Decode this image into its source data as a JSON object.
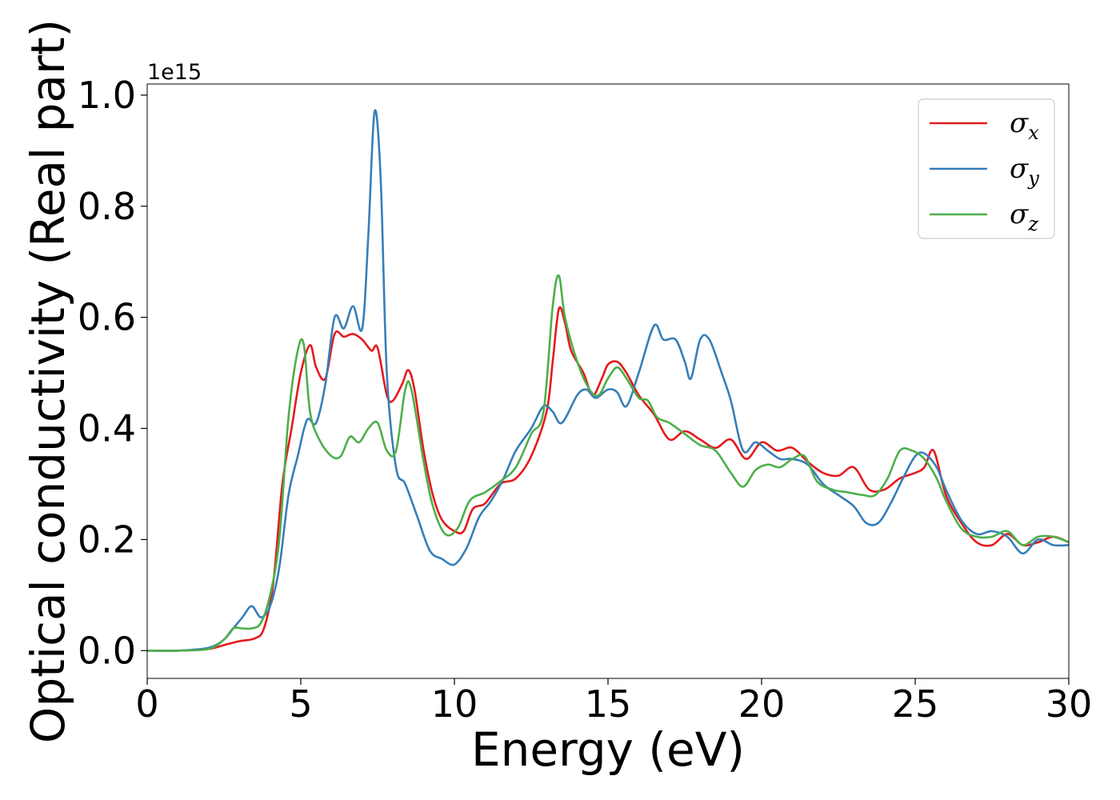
{
  "chart_data": {
    "type": "line",
    "title": "",
    "xlabel": "Energy (eV)",
    "ylabel": "Optical conductivity (Real part)",
    "y_offset_text": "1e15",
    "xlim": [
      0,
      30
    ],
    "ylim": [
      -0.05,
      1.02
    ],
    "x_ticks": [
      0,
      5,
      10,
      15,
      20,
      25,
      30
    ],
    "y_ticks": [
      0.0,
      0.2,
      0.4,
      0.6,
      0.8,
      1.0
    ],
    "x_tick_labels": [
      "0",
      "5",
      "10",
      "15",
      "20",
      "25",
      "30"
    ],
    "y_tick_labels": [
      "0.0",
      "0.2",
      "0.4",
      "0.6",
      "0.8",
      "1.0"
    ],
    "grid": false,
    "legend_position": "top-right",
    "series": [
      {
        "name": "σx",
        "symbol": "σ",
        "subscript": "x",
        "color": "#e41a1c",
        "points": [
          [
            0,
            0.0
          ],
          [
            1,
            0.0
          ],
          [
            2,
            0.003
          ],
          [
            2.5,
            0.01
          ],
          [
            3,
            0.017
          ],
          [
            3.5,
            0.022
          ],
          [
            3.8,
            0.04
          ],
          [
            4.1,
            0.12
          ],
          [
            4.4,
            0.3
          ],
          [
            4.7,
            0.4
          ],
          [
            5.0,
            0.5
          ],
          [
            5.3,
            0.55
          ],
          [
            5.5,
            0.51
          ],
          [
            5.8,
            0.49
          ],
          [
            6.1,
            0.57
          ],
          [
            6.4,
            0.565
          ],
          [
            6.7,
            0.57
          ],
          [
            7.0,
            0.56
          ],
          [
            7.3,
            0.54
          ],
          [
            7.5,
            0.545
          ],
          [
            7.8,
            0.46
          ],
          [
            8.0,
            0.45
          ],
          [
            8.3,
            0.48
          ],
          [
            8.5,
            0.505
          ],
          [
            8.7,
            0.47
          ],
          [
            9.0,
            0.36
          ],
          [
            9.3,
            0.28
          ],
          [
            9.6,
            0.235
          ],
          [
            10.0,
            0.215
          ],
          [
            10.3,
            0.215
          ],
          [
            10.6,
            0.255
          ],
          [
            11.0,
            0.265
          ],
          [
            11.5,
            0.3
          ],
          [
            12.0,
            0.31
          ],
          [
            12.5,
            0.35
          ],
          [
            13.0,
            0.43
          ],
          [
            13.2,
            0.52
          ],
          [
            13.4,
            0.615
          ],
          [
            13.6,
            0.59
          ],
          [
            13.8,
            0.54
          ],
          [
            14.2,
            0.5
          ],
          [
            14.5,
            0.46
          ],
          [
            14.8,
            0.49
          ],
          [
            15.0,
            0.515
          ],
          [
            15.3,
            0.52
          ],
          [
            15.6,
            0.5
          ],
          [
            16.0,
            0.46
          ],
          [
            16.5,
            0.425
          ],
          [
            17.0,
            0.38
          ],
          [
            17.5,
            0.395
          ],
          [
            18.0,
            0.38
          ],
          [
            18.5,
            0.365
          ],
          [
            19.0,
            0.38
          ],
          [
            19.5,
            0.345
          ],
          [
            20.0,
            0.375
          ],
          [
            20.5,
            0.36
          ],
          [
            21.0,
            0.365
          ],
          [
            21.5,
            0.34
          ],
          [
            22.0,
            0.32
          ],
          [
            22.5,
            0.315
          ],
          [
            23.0,
            0.33
          ],
          [
            23.5,
            0.29
          ],
          [
            24.0,
            0.29
          ],
          [
            24.5,
            0.31
          ],
          [
            25.0,
            0.32
          ],
          [
            25.3,
            0.33
          ],
          [
            25.6,
            0.36
          ],
          [
            26.0,
            0.28
          ],
          [
            26.5,
            0.23
          ],
          [
            27.0,
            0.195
          ],
          [
            27.5,
            0.19
          ],
          [
            28.0,
            0.21
          ],
          [
            28.5,
            0.19
          ],
          [
            29.0,
            0.195
          ],
          [
            29.5,
            0.205
          ],
          [
            30.0,
            0.195
          ]
        ]
      },
      {
        "name": "σy",
        "symbol": "σ",
        "subscript": "y",
        "color": "#377eb8",
        "points": [
          [
            0,
            0.0
          ],
          [
            1,
            0.0
          ],
          [
            2,
            0.005
          ],
          [
            2.5,
            0.02
          ],
          [
            2.8,
            0.04
          ],
          [
            3.1,
            0.06
          ],
          [
            3.4,
            0.08
          ],
          [
            3.7,
            0.06
          ],
          [
            4.0,
            0.08
          ],
          [
            4.3,
            0.15
          ],
          [
            4.6,
            0.28
          ],
          [
            4.9,
            0.35
          ],
          [
            5.2,
            0.415
          ],
          [
            5.5,
            0.41
          ],
          [
            5.8,
            0.48
          ],
          [
            6.1,
            0.6
          ],
          [
            6.4,
            0.58
          ],
          [
            6.7,
            0.62
          ],
          [
            7.0,
            0.58
          ],
          [
            7.2,
            0.75
          ],
          [
            7.4,
            0.97
          ],
          [
            7.6,
            0.85
          ],
          [
            7.8,
            0.5
          ],
          [
            8.1,
            0.33
          ],
          [
            8.4,
            0.3
          ],
          [
            8.8,
            0.24
          ],
          [
            9.2,
            0.18
          ],
          [
            9.6,
            0.165
          ],
          [
            10.0,
            0.155
          ],
          [
            10.4,
            0.185
          ],
          [
            10.8,
            0.24
          ],
          [
            11.2,
            0.27
          ],
          [
            11.6,
            0.31
          ],
          [
            12.0,
            0.36
          ],
          [
            12.5,
            0.4
          ],
          [
            12.9,
            0.44
          ],
          [
            13.2,
            0.43
          ],
          [
            13.5,
            0.41
          ],
          [
            14.0,
            0.46
          ],
          [
            14.3,
            0.47
          ],
          [
            14.6,
            0.455
          ],
          [
            15.0,
            0.47
          ],
          [
            15.3,
            0.465
          ],
          [
            15.6,
            0.44
          ],
          [
            16.0,
            0.5
          ],
          [
            16.5,
            0.585
          ],
          [
            16.8,
            0.56
          ],
          [
            17.2,
            0.56
          ],
          [
            17.5,
            0.52
          ],
          [
            17.7,
            0.49
          ],
          [
            18.0,
            0.56
          ],
          [
            18.3,
            0.56
          ],
          [
            18.7,
            0.5
          ],
          [
            19.0,
            0.45
          ],
          [
            19.4,
            0.36
          ],
          [
            19.8,
            0.375
          ],
          [
            20.2,
            0.36
          ],
          [
            20.6,
            0.345
          ],
          [
            21.0,
            0.345
          ],
          [
            21.5,
            0.335
          ],
          [
            22.0,
            0.3
          ],
          [
            22.5,
            0.28
          ],
          [
            23.0,
            0.26
          ],
          [
            23.4,
            0.23
          ],
          [
            23.8,
            0.23
          ],
          [
            24.2,
            0.265
          ],
          [
            24.6,
            0.31
          ],
          [
            25.0,
            0.35
          ],
          [
            25.3,
            0.355
          ],
          [
            25.7,
            0.33
          ],
          [
            26.0,
            0.29
          ],
          [
            26.5,
            0.235
          ],
          [
            27.0,
            0.21
          ],
          [
            27.5,
            0.215
          ],
          [
            28.0,
            0.205
          ],
          [
            28.5,
            0.175
          ],
          [
            29.0,
            0.2
          ],
          [
            29.5,
            0.19
          ],
          [
            30.0,
            0.19
          ]
        ]
      },
      {
        "name": "σz",
        "symbol": "σ",
        "subscript": "z",
        "color": "#4daf4a",
        "points": [
          [
            0,
            0.0
          ],
          [
            1,
            0.0
          ],
          [
            2,
            0.003
          ],
          [
            2.5,
            0.02
          ],
          [
            2.8,
            0.04
          ],
          [
            3.1,
            0.04
          ],
          [
            3.4,
            0.04
          ],
          [
            3.7,
            0.05
          ],
          [
            4.0,
            0.1
          ],
          [
            4.3,
            0.2
          ],
          [
            4.6,
            0.42
          ],
          [
            4.9,
            0.54
          ],
          [
            5.1,
            0.55
          ],
          [
            5.3,
            0.43
          ],
          [
            5.6,
            0.38
          ],
          [
            6.0,
            0.35
          ],
          [
            6.3,
            0.35
          ],
          [
            6.6,
            0.385
          ],
          [
            6.9,
            0.375
          ],
          [
            7.2,
            0.4
          ],
          [
            7.5,
            0.41
          ],
          [
            7.8,
            0.36
          ],
          [
            8.1,
            0.36
          ],
          [
            8.4,
            0.47
          ],
          [
            8.6,
            0.47
          ],
          [
            9.0,
            0.34
          ],
          [
            9.3,
            0.26
          ],
          [
            9.7,
            0.21
          ],
          [
            10.1,
            0.22
          ],
          [
            10.5,
            0.27
          ],
          [
            11.0,
            0.285
          ],
          [
            11.5,
            0.305
          ],
          [
            12.0,
            0.33
          ],
          [
            12.5,
            0.39
          ],
          [
            12.9,
            0.43
          ],
          [
            13.2,
            0.62
          ],
          [
            13.4,
            0.675
          ],
          [
            13.6,
            0.6
          ],
          [
            14.0,
            0.52
          ],
          [
            14.4,
            0.47
          ],
          [
            14.7,
            0.46
          ],
          [
            15.0,
            0.49
          ],
          [
            15.3,
            0.51
          ],
          [
            15.6,
            0.49
          ],
          [
            16.0,
            0.455
          ],
          [
            16.3,
            0.45
          ],
          [
            16.6,
            0.42
          ],
          [
            17.0,
            0.41
          ],
          [
            17.5,
            0.39
          ],
          [
            18.0,
            0.37
          ],
          [
            18.5,
            0.36
          ],
          [
            19.0,
            0.32
          ],
          [
            19.4,
            0.295
          ],
          [
            19.8,
            0.325
          ],
          [
            20.2,
            0.335
          ],
          [
            20.6,
            0.33
          ],
          [
            21.0,
            0.345
          ],
          [
            21.4,
            0.35
          ],
          [
            21.8,
            0.305
          ],
          [
            22.3,
            0.29
          ],
          [
            22.8,
            0.285
          ],
          [
            23.3,
            0.28
          ],
          [
            23.7,
            0.28
          ],
          [
            24.1,
            0.31
          ],
          [
            24.5,
            0.36
          ],
          [
            24.9,
            0.36
          ],
          [
            25.3,
            0.345
          ],
          [
            25.7,
            0.31
          ],
          [
            26.0,
            0.27
          ],
          [
            26.5,
            0.22
          ],
          [
            27.0,
            0.205
          ],
          [
            27.5,
            0.205
          ],
          [
            28.0,
            0.215
          ],
          [
            28.5,
            0.19
          ],
          [
            29.0,
            0.205
          ],
          [
            29.5,
            0.205
          ],
          [
            30.0,
            0.195
          ]
        ]
      }
    ]
  }
}
